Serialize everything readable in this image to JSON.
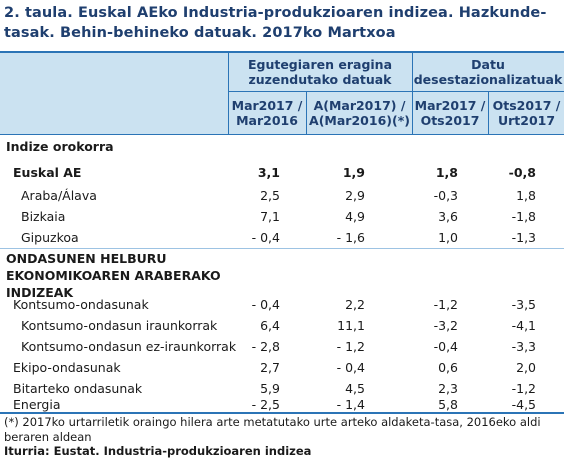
{
  "title": {
    "line1": "2. taula. Euskal AEko Industria-produkzioaren indizea. Hazkunde-",
    "line2": "tasak. Behin-behineko datuak. 2017ko Martxoa"
  },
  "header": {
    "group1": [
      "Egutegiaren eragina",
      "zuzendutako datuak"
    ],
    "group2": [
      "Datu",
      "desestazionalizatuak"
    ],
    "col1": [
      "Mar2017 /",
      "Mar2016"
    ],
    "col2": [
      "A(Mar2017) /",
      "A(Mar2016)(*)"
    ],
    "col3": [
      "Mar2017 /",
      "Ots2017"
    ],
    "col4": [
      "Ots2017 /",
      "Urt2017"
    ]
  },
  "sections": {
    "general": "Indize orokorra",
    "destino": [
      "ONDASUNEN HELBURU",
      "EKONOMIKOAREN ARABERAKO",
      "INDIZEAK"
    ]
  },
  "rows": [
    {
      "label": "Euskal AE",
      "values": [
        "3,1",
        "1,9",
        "1,8",
        "-0,8"
      ]
    },
    {
      "label": "Araba/Álava",
      "values": [
        "2,5",
        "2,9",
        "-0,3",
        "1,8"
      ]
    },
    {
      "label": "Bizkaia",
      "values": [
        "7,1",
        "4,9",
        "3,6",
        "-1,8"
      ]
    },
    {
      "label": "Gipuzkoa",
      "values": [
        "- 0,4",
        "- 1,6",
        "1,0",
        "-1,3"
      ]
    },
    {
      "label": "Kontsumo-ondasunak",
      "values": [
        "- 0,4",
        "2,2",
        "-1,2",
        "-3,5"
      ]
    },
    {
      "label": "Kontsumo-ondasun iraunkorrak",
      "values": [
        "6,4",
        "11,1",
        "-3,2",
        "-4,1"
      ]
    },
    {
      "label": "Kontsumo-ondasun ez-iraunkorrak",
      "values": [
        "- 2,8",
        "- 1,2",
        "-0,4",
        "-3,3"
      ]
    },
    {
      "label": "Ekipo-ondasunak",
      "values": [
        "2,7",
        "- 0,4",
        "0,6",
        "2,0"
      ]
    },
    {
      "label": "Bitarteko ondasunak",
      "values": [
        "5,9",
        "4,5",
        "2,3",
        "-1,2"
      ]
    },
    {
      "label": "Energia",
      "values": [
        "- 2,5",
        "- 1,4",
        "5,8",
        "-4,5"
      ]
    }
  ],
  "footnote": "(*) 2017ko urtarriletik oraingo hilera arte metatutako urte arteko aldaketa-tasa, 2016eko aldi beraren aldean",
  "source": "Iturria: Eustat. Industria-produkzioaren indizea"
}
